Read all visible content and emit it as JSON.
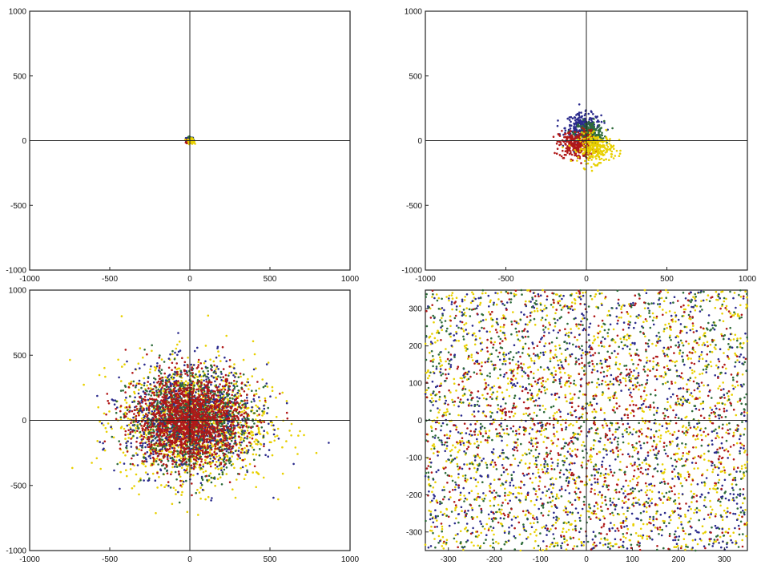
{
  "chart_data": [
    {
      "type": "scatter",
      "panel": "top-left",
      "title": "",
      "xlabel": "",
      "ylabel": "",
      "xlim": [
        -1000,
        1000
      ],
      "ylim": [
        -1000,
        1000
      ],
      "x_ticks": [
        "-1000",
        "-500",
        "0",
        "500",
        "1000"
      ],
      "y_ticks": [
        "1000",
        "500",
        "0",
        "-500",
        "-1000"
      ],
      "grid": false,
      "origin_axes": true,
      "series": [
        {
          "color": "#2a2a8c",
          "center": [
            0,
            5
          ],
          "spread": 12,
          "count": 60
        },
        {
          "color": "#2e6b3a",
          "center": [
            4,
            8
          ],
          "spread": 10,
          "count": 50
        },
        {
          "color": "#b01818",
          "center": [
            -4,
            -6
          ],
          "spread": 10,
          "count": 50
        },
        {
          "color": "#e8d000",
          "center": [
            6,
            -4
          ],
          "spread": 10,
          "count": 50
        }
      ]
    },
    {
      "type": "scatter",
      "panel": "top-right",
      "title": "",
      "xlabel": "",
      "ylabel": "",
      "xlim": [
        -1000,
        1000
      ],
      "ylim": [
        -1000,
        1000
      ],
      "x_ticks": [
        "-1000",
        "-500",
        "0",
        "500",
        "1000"
      ],
      "y_ticks": [
        "1000",
        "500",
        "0",
        "-500",
        "-1000"
      ],
      "grid": false,
      "origin_axes": true,
      "series": [
        {
          "color": "#2a2a8c",
          "center": [
            -20,
            100
          ],
          "spread": 55,
          "count": 260
        },
        {
          "color": "#2e6b3a",
          "center": [
            20,
            60
          ],
          "spread": 45,
          "count": 220
        },
        {
          "color": "#b01818",
          "center": [
            -60,
            -30
          ],
          "spread": 55,
          "count": 280
        },
        {
          "color": "#e8d000",
          "center": [
            60,
            -60
          ],
          "spread": 55,
          "count": 260
        }
      ]
    },
    {
      "type": "scatter",
      "panel": "bottom-left",
      "title": "",
      "xlabel": "",
      "ylabel": "",
      "xlim": [
        -1000,
        1000
      ],
      "ylim": [
        -1000,
        1000
      ],
      "x_ticks": [
        "-1000",
        "-500",
        "0",
        "500",
        "1000"
      ],
      "y_ticks": [
        "1000",
        "500",
        "0",
        "-500",
        "-1000"
      ],
      "grid": false,
      "origin_axes": true,
      "series": [
        {
          "color": "#e8d000",
          "center": [
            30,
            -20
          ],
          "spread": 230,
          "count": 1300
        },
        {
          "color": "#2a2a8c",
          "center": [
            10,
            10
          ],
          "spread": 200,
          "count": 900
        },
        {
          "color": "#2e6b3a",
          "center": [
            0,
            0
          ],
          "spread": 190,
          "count": 900
        },
        {
          "color": "#b01818",
          "center": [
            0,
            0
          ],
          "spread": 170,
          "count": 1500
        }
      ]
    },
    {
      "type": "scatter",
      "panel": "bottom-right",
      "title": "",
      "xlabel": "",
      "ylabel": "",
      "xlim": [
        -350,
        350
      ],
      "ylim": [
        -350,
        350
      ],
      "x_ticks": [
        "-300",
        "-200",
        "-100",
        "0",
        "100",
        "200",
        "300"
      ],
      "y_ticks": [
        "300",
        "200",
        "100",
        "0",
        "-100",
        "-200",
        "-300"
      ],
      "grid": false,
      "origin_axes": true,
      "series": [
        {
          "color": "#e8d000",
          "center": [
            0,
            0
          ],
          "spread": 0,
          "count": 1500
        },
        {
          "color": "#2a2a8c",
          "center": [
            0,
            0
          ],
          "spread": 0,
          "count": 900
        },
        {
          "color": "#2e6b3a",
          "center": [
            0,
            0
          ],
          "spread": 0,
          "count": 900
        },
        {
          "color": "#b01818",
          "center": [
            0,
            0
          ],
          "spread": 260,
          "count": 1300
        }
      ]
    }
  ]
}
